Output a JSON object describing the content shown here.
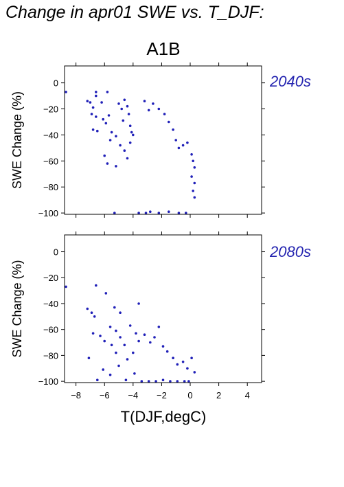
{
  "figure_title": "Change in apr01 SWE vs. T_DJF:",
  "scenario_label": "A1B",
  "marker_color": "#2020b8",
  "chart_data": [
    {
      "type": "scatter",
      "title": "2040s",
      "xlabel": "T(DJF,degC)",
      "ylabel": "SWE Change (%)",
      "xlim": [
        -8.8,
        5
      ],
      "ylim": [
        -101,
        13
      ],
      "xticks": [
        -8,
        -6,
        -4,
        -2,
        0,
        2,
        4
      ],
      "xtick_labels": [
        "−8",
        "−6",
        "−4",
        "−2",
        "0",
        "2",
        "4"
      ],
      "show_xtick_labels": false,
      "yticks": [
        0,
        -20,
        -40,
        -60,
        -80,
        -100
      ],
      "ytick_labels": [
        "0",
        "−20",
        "−40",
        "−60",
        "−80",
        "−100"
      ],
      "grid": false,
      "points": [
        [
          -8.7,
          -7
        ],
        [
          -7.2,
          -14
        ],
        [
          -7.0,
          -15
        ],
        [
          -6.8,
          -19
        ],
        [
          -6.6,
          -10
        ],
        [
          -6.6,
          -7
        ],
        [
          -6.2,
          -15
        ],
        [
          -5.8,
          -7
        ],
        [
          -6.9,
          -24
        ],
        [
          -6.6,
          -26
        ],
        [
          -6.8,
          -36
        ],
        [
          -6.5,
          -37
        ],
        [
          -6.1,
          -28
        ],
        [
          -5.9,
          -31
        ],
        [
          -5.7,
          -25
        ],
        [
          -5.5,
          -38
        ],
        [
          -5.6,
          -44
        ],
        [
          -5.2,
          -41
        ],
        [
          -5.0,
          -16
        ],
        [
          -4.8,
          -20
        ],
        [
          -4.6,
          -13
        ],
        [
          -4.4,
          -18
        ],
        [
          -4.3,
          -24
        ],
        [
          -4.7,
          -29
        ],
        [
          -4.2,
          -33
        ],
        [
          -4.1,
          -38
        ],
        [
          -4.9,
          -48
        ],
        [
          -4.6,
          -52
        ],
        [
          -4.4,
          -58
        ],
        [
          -5.2,
          -64
        ],
        [
          -4.2,
          -46
        ],
        [
          -4.0,
          -40
        ],
        [
          -6.0,
          -56
        ],
        [
          -5.8,
          -62
        ],
        [
          -3.2,
          -14
        ],
        [
          -2.9,
          -21
        ],
        [
          -2.6,
          -16
        ],
        [
          -2.2,
          -20
        ],
        [
          -1.8,
          -24
        ],
        [
          -1.5,
          -30
        ],
        [
          -1.2,
          -36
        ],
        [
          -1.0,
          -44
        ],
        [
          -0.8,
          -50
        ],
        [
          -0.5,
          -48
        ],
        [
          -0.2,
          -46
        ],
        [
          0.1,
          -55
        ],
        [
          0.2,
          -60
        ],
        [
          0.3,
          -65
        ],
        [
          0.1,
          -72
        ],
        [
          0.3,
          -77
        ],
        [
          0.2,
          -83
        ],
        [
          0.3,
          -88
        ],
        [
          -5.3,
          -100
        ],
        [
          -3.6,
          -100
        ],
        [
          -3.1,
          -100
        ],
        [
          -2.8,
          -99
        ],
        [
          -2.2,
          -100
        ],
        [
          -1.5,
          -99
        ],
        [
          -0.8,
          -100
        ],
        [
          -0.3,
          -100
        ]
      ]
    },
    {
      "type": "scatter",
      "title": "2080s",
      "xlabel": "T(DJF,degC)",
      "ylabel": "SWE Change (%)",
      "xlim": [
        -8.8,
        5
      ],
      "ylim": [
        -101,
        13
      ],
      "xticks": [
        -8,
        -6,
        -4,
        -2,
        0,
        2,
        4
      ],
      "xtick_labels": [
        "−8",
        "−6",
        "−4",
        "−2",
        "0",
        "2",
        "4"
      ],
      "show_xtick_labels": true,
      "yticks": [
        0,
        -20,
        -40,
        -60,
        -80,
        -100
      ],
      "ytick_labels": [
        "0",
        "−20",
        "−40",
        "−60",
        "−80",
        "−100"
      ],
      "grid": false,
      "points": [
        [
          -8.7,
          -27
        ],
        [
          -6.6,
          -26
        ],
        [
          -5.9,
          -32
        ],
        [
          -5.3,
          -43
        ],
        [
          -4.9,
          -47
        ],
        [
          -3.6,
          -40
        ],
        [
          -7.2,
          -44
        ],
        [
          -6.9,
          -47
        ],
        [
          -6.7,
          -50
        ],
        [
          -6.8,
          -63
        ],
        [
          -6.3,
          -65
        ],
        [
          -6.0,
          -69
        ],
        [
          -5.6,
          -58
        ],
        [
          -5.2,
          -61
        ],
        [
          -5.5,
          -72
        ],
        [
          -5.2,
          -78
        ],
        [
          -4.9,
          -66
        ],
        [
          -4.6,
          -72
        ],
        [
          -4.2,
          -57
        ],
        [
          -3.8,
          -63
        ],
        [
          -4.4,
          -83
        ],
        [
          -4.0,
          -78
        ],
        [
          -3.6,
          -69
        ],
        [
          -3.2,
          -64
        ],
        [
          -2.8,
          -70
        ],
        [
          -2.5,
          -66
        ],
        [
          -2.2,
          -58
        ],
        [
          -1.9,
          -73
        ],
        [
          -1.6,
          -77
        ],
        [
          -1.2,
          -82
        ],
        [
          -0.9,
          -87
        ],
        [
          -0.5,
          -85
        ],
        [
          -0.2,
          -90
        ],
        [
          0.1,
          -82
        ],
        [
          0.3,
          -93
        ],
        [
          -6.1,
          -91
        ],
        [
          -5.6,
          -95
        ],
        [
          -5.0,
          -88
        ],
        [
          -4.5,
          -99
        ],
        [
          -3.9,
          -94
        ],
        [
          -3.4,
          -100
        ],
        [
          -2.9,
          -100
        ],
        [
          -2.4,
          -100
        ],
        [
          -1.9,
          -99
        ],
        [
          -1.4,
          -100
        ],
        [
          -0.9,
          -100
        ],
        [
          -0.4,
          -100
        ],
        [
          -0.1,
          -100
        ],
        [
          -7.1,
          -82
        ],
        [
          -6.5,
          -99
        ]
      ]
    }
  ]
}
